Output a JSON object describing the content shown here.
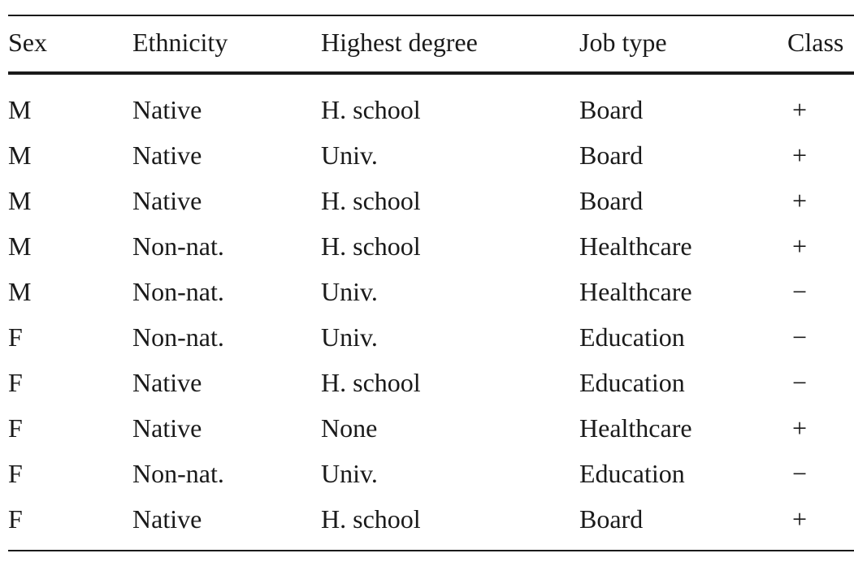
{
  "table": {
    "headers": [
      "Sex",
      "Ethnicity",
      "Highest degree",
      "Job type",
      "Class"
    ],
    "rows": [
      [
        "M",
        "Native",
        "H. school",
        "Board",
        "+"
      ],
      [
        "M",
        "Native",
        "Univ.",
        "Board",
        "+"
      ],
      [
        "M",
        "Native",
        "H. school",
        "Board",
        "+"
      ],
      [
        "M",
        "Non-nat.",
        "H. school",
        "Healthcare",
        "+"
      ],
      [
        "M",
        "Non-nat.",
        "Univ.",
        "Healthcare",
        "−"
      ],
      [
        "F",
        "Non-nat.",
        "Univ.",
        "Education",
        "−"
      ],
      [
        "F",
        "Native",
        "H. school",
        "Education",
        "−"
      ],
      [
        "F",
        "Native",
        "None",
        "Healthcare",
        "+"
      ],
      [
        "F",
        "Non-nat.",
        "Univ.",
        "Education",
        "−"
      ],
      [
        "F",
        "Native",
        "H. school",
        "Board",
        "+"
      ]
    ]
  }
}
